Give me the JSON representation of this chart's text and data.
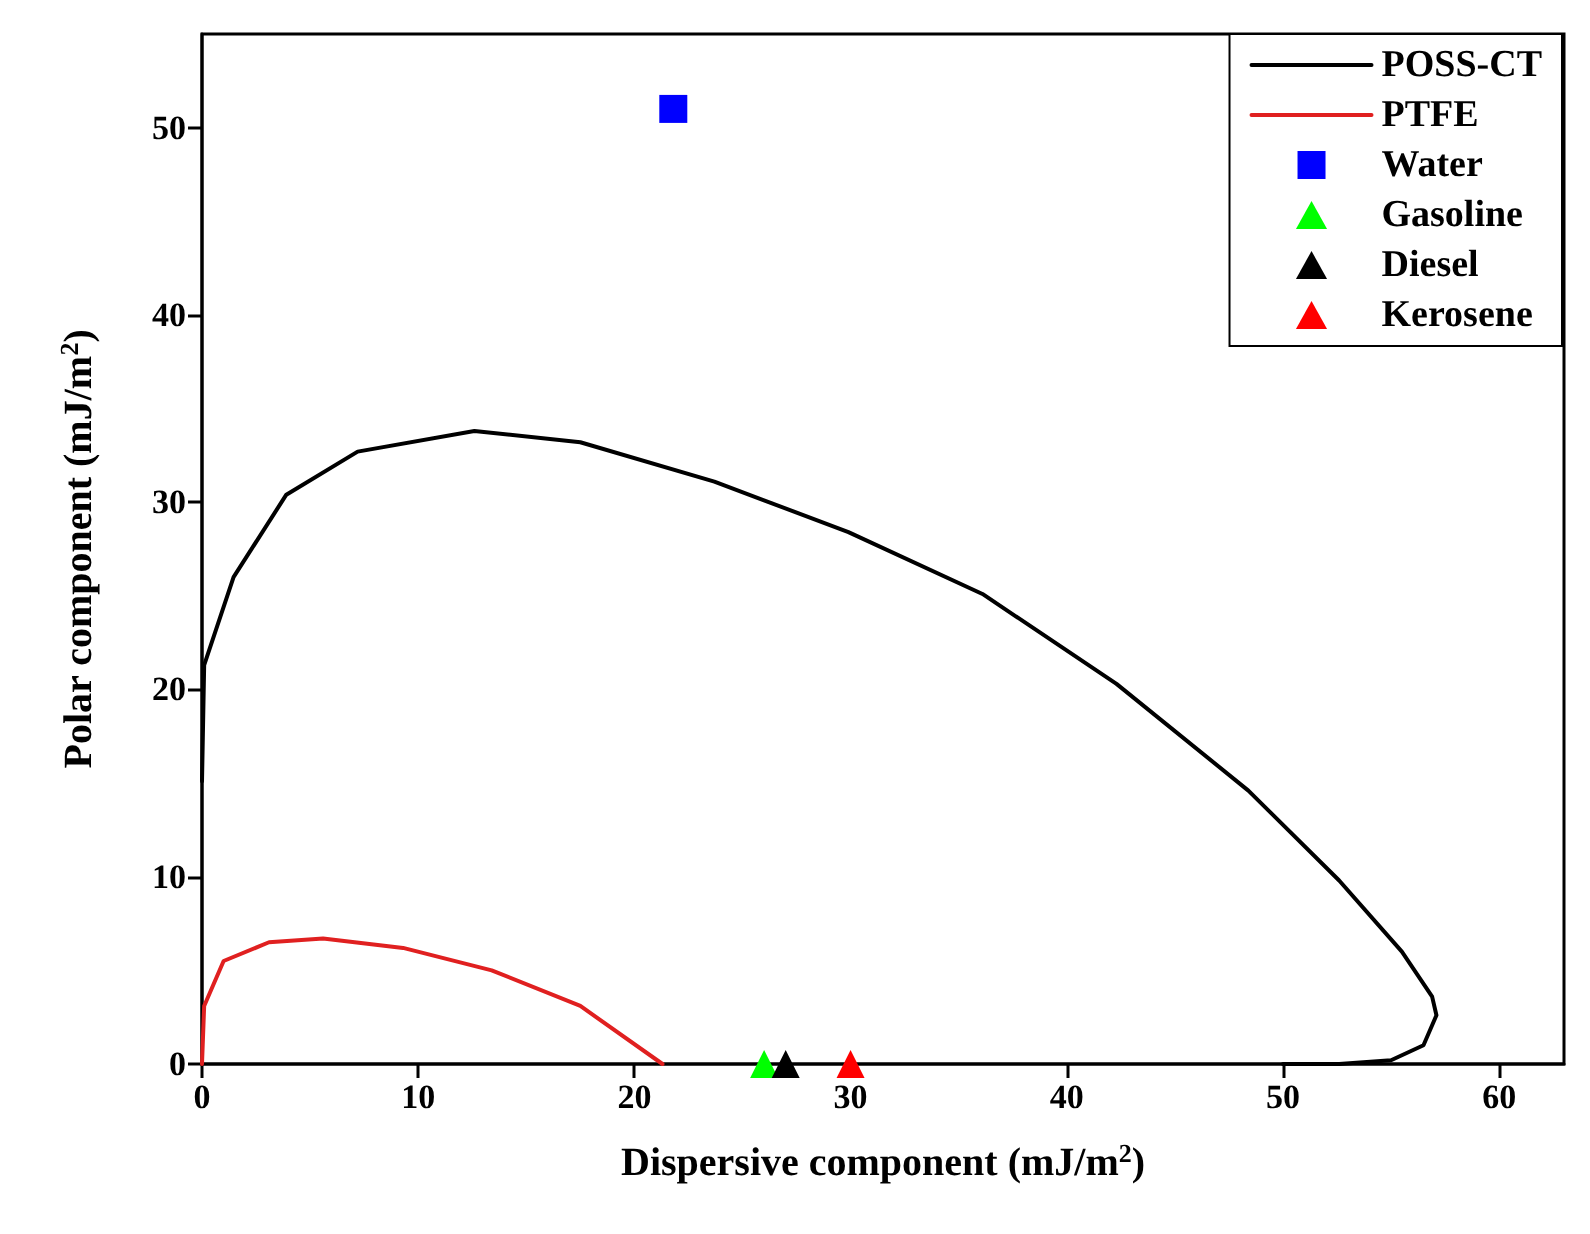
{
  "chart_data": {
    "type": "line",
    "xlabel": "Dispersive component (mJ/m$^{2}$)",
    "ylabel": "Polar component (mJ/m$^{2}$)",
    "xlim": [
      0,
      63
    ],
    "ylim": [
      0,
      55
    ],
    "xticks": [
      0,
      10,
      20,
      30,
      40,
      50,
      60
    ],
    "yticks": [
      0,
      10,
      20,
      30,
      40,
      50
    ],
    "grid": false,
    "legend": "top right",
    "series": [
      {
        "name": "POSS-CT",
        "color": "#000000",
        "marker": "none",
        "x": [
          0,
          0.1,
          1.46,
          3.9,
          7.2,
          12.6,
          17.5,
          23.7,
          29.9,
          36.1,
          42.3,
          48.4,
          52.6,
          55.5,
          56.9,
          57.1,
          56.5,
          55.0,
          52.6,
          50
        ],
        "values": [
          15.1,
          21.3,
          26,
          30.4,
          32.7,
          33.8,
          33.2,
          31.1,
          28.4,
          25.1,
          20.3,
          14.6,
          9.8,
          6.0,
          3.6,
          2.6,
          1.0,
          0.2,
          0,
          0
        ]
      },
      {
        "name": "PTFE",
        "color": "#e02020",
        "marker": "none",
        "x": [
          0,
          0.1,
          1.0,
          3.1,
          5.6,
          9.3,
          13.4,
          17.5,
          21.3
        ],
        "values": [
          0,
          3.1,
          5.5,
          6.5,
          6.7,
          6.2,
          5.0,
          3.1,
          0
        ]
      },
      {
        "name": "Water",
        "type": "scatter",
        "color": "#0000ff",
        "marker": "square",
        "x": [
          21.8
        ],
        "values": [
          51
        ]
      },
      {
        "name": "Gasoline",
        "type": "scatter",
        "color": "#00ff00",
        "marker": "triangle",
        "x": [
          26
        ],
        "values": [
          0
        ]
      },
      {
        "name": "Diesel",
        "type": "scatter",
        "color": "#000000",
        "marker": "triangle",
        "x": [
          27
        ],
        "values": [
          0
        ]
      },
      {
        "name": "Kerosene",
        "type": "scatter",
        "color": "#ff0000",
        "marker": "triangle",
        "x": [
          30
        ],
        "values": [
          0
        ]
      }
    ]
  }
}
